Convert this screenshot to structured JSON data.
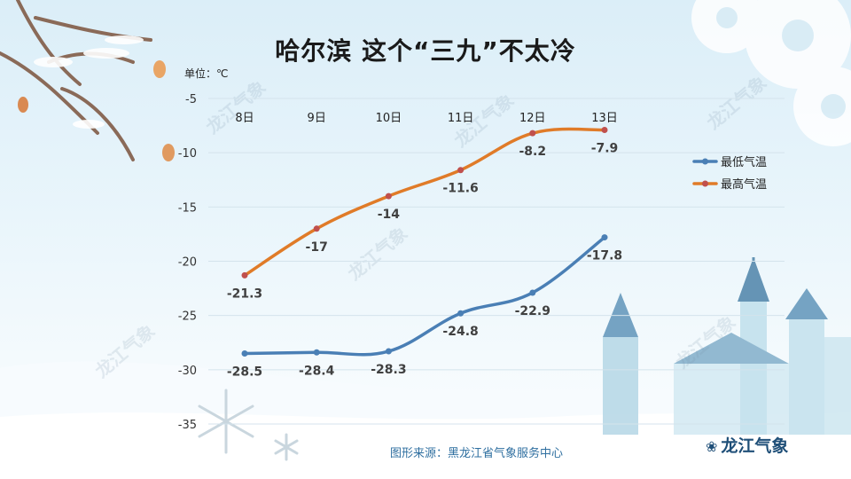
{
  "header": {
    "title": "哈尔滨  这个“三九”不太冷",
    "unit": "单位：℃"
  },
  "footer": {
    "source": "图形来源：黑龙江省气象服务中心",
    "brand": "龙江气象"
  },
  "watermark": "龙江气象",
  "colors": {
    "low_series": "#4a7fb5",
    "high_series": "#e07b28",
    "high_marker": "#c0504d",
    "label_text": "#404040"
  },
  "chart_data": {
    "type": "line",
    "categories": [
      "8日",
      "9日",
      "10日",
      "11日",
      "12日",
      "13日"
    ],
    "ylim": [
      -35,
      -5
    ],
    "yticks": [
      -5,
      -10,
      -15,
      -20,
      -25,
      -30,
      -35
    ],
    "xaxis_position": "top",
    "grid": true,
    "legend_position": "right",
    "series": [
      {
        "name": "最低气温",
        "values": [
          -28.5,
          -28.4,
          -28.3,
          -24.8,
          -22.9,
          -17.8
        ]
      },
      {
        "name": "最高气温",
        "values": [
          -21.3,
          -17,
          -14,
          -11.6,
          -8.2,
          -7.9
        ]
      }
    ]
  }
}
